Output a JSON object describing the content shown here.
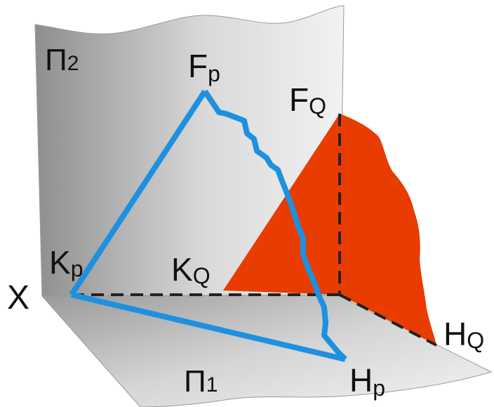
{
  "labels": {
    "pi2": "Π",
    "pi2_sub": "2",
    "pi1": "Π",
    "pi1_sub": "1",
    "x_axis": "X",
    "fp": "F",
    "fp_sub": "p",
    "fq": "F",
    "fq_sub": "Q",
    "kp": "K",
    "kp_sub": "p",
    "kq": "K",
    "kq_sub": "Q",
    "hp": "H",
    "hp_sub": "p",
    "hq": "H",
    "hq_sub": "Q"
  },
  "colors": {
    "plane_q": "#e83c00",
    "plane_p_trace": "#1e90e0",
    "dashed_lines": "#222222",
    "planes_gray": "#bdbdbd"
  }
}
